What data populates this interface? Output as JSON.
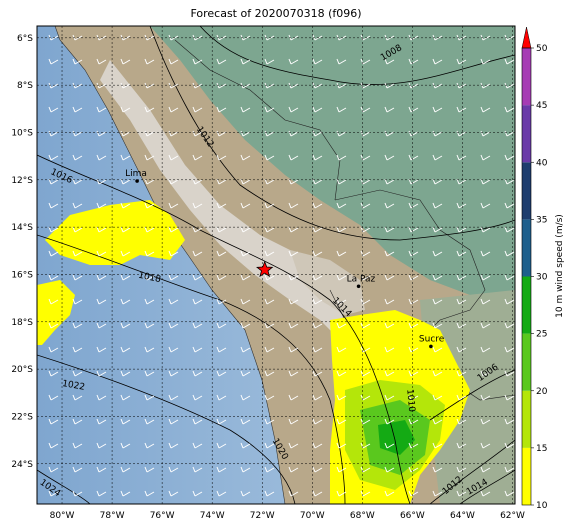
{
  "title": "Forecast of 2020070318 (f096)",
  "colorbar": {
    "label": "10 m wind speed (m/s)",
    "ticks": [
      "10",
      "15",
      "20",
      "25",
      "30",
      "35",
      "40",
      "45",
      "50"
    ],
    "colors": [
      "#ffff00",
      "#b4e60a",
      "#5ac81e",
      "#14aa14",
      "#1e5f8c",
      "#1e3d6e",
      "#6a3aa8",
      "#a63cb4"
    ],
    "extend_color": "#ff0000"
  },
  "axes": {
    "lon_labels": [
      "80°W",
      "78°W",
      "76°W",
      "74°W",
      "72°W",
      "70°W",
      "68°W",
      "66°W",
      "64°W",
      "62°W"
    ],
    "lat_labels": [
      "6°S",
      "8°S",
      "10°S",
      "12°S",
      "14°S",
      "16°S",
      "18°S",
      "20°S",
      "22°S",
      "24°S"
    ]
  },
  "cities": [
    {
      "name": "Lima",
      "lon": -77.0,
      "lat": -12.05
    },
    {
      "name": "La Paz",
      "lon": -68.15,
      "lat": -16.5
    },
    {
      "name": "Sucre",
      "lon": -65.26,
      "lat": -19.04
    }
  ],
  "marker": {
    "symbol": "red-star",
    "lon": -71.9,
    "lat": -15.8
  },
  "isobar_labels": [
    "1008",
    "1012",
    "1016",
    "1018",
    "1014",
    "1010",
    "1006",
    "1022",
    "1020",
    "1024",
    "1012",
    "1014"
  ],
  "colors": {
    "ocean": "#8fb4d8",
    "land": "#b9a98d",
    "highland": "#7aa38e",
    "andes": "#d9d9d9"
  }
}
